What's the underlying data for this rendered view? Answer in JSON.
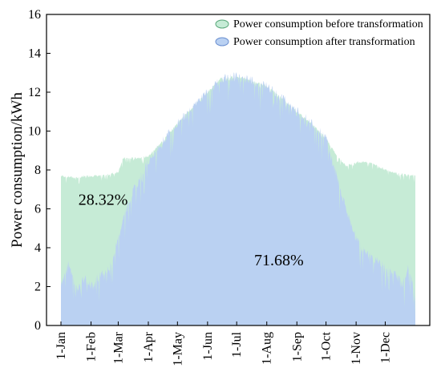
{
  "chart_data": {
    "type": "area",
    "title": "",
    "xlabel": "",
    "ylabel": "Power consumption/kWh",
    "ylim": [
      0,
      16
    ],
    "yticks": [
      0,
      2,
      4,
      6,
      8,
      10,
      12,
      14,
      16
    ],
    "xlim": [
      0,
      365
    ],
    "xticks": [
      {
        "label": "1-Jan",
        "day": 0
      },
      {
        "label": "1-Feb",
        "day": 31
      },
      {
        "label": "1-Mar",
        "day": 59
      },
      {
        "label": "1-Apr",
        "day": 90
      },
      {
        "label": "1-May",
        "day": 120
      },
      {
        "label": "1-Jun",
        "day": 151
      },
      {
        "label": "1-Jul",
        "day": 181
      },
      {
        "label": "1-Aug",
        "day": 212
      },
      {
        "label": "1-Sep",
        "day": 243
      },
      {
        "label": "1-Oct",
        "day": 273
      },
      {
        "label": "1-Nov",
        "day": 304
      },
      {
        "label": "1-Dec",
        "day": 334
      }
    ],
    "grid": false,
    "legend_position": "top-right",
    "series": [
      {
        "name": "Power consumption before transformation",
        "color": "#c6ebd6",
        "edge_color": "#5aa87a",
        "x": [
          0,
          15,
          31,
          45,
          59,
          64,
          75,
          90,
          105,
          120,
          135,
          151,
          165,
          181,
          196,
          212,
          228,
          243,
          258,
          273,
          285,
          294,
          304,
          319,
          334,
          350,
          365
        ],
        "values": [
          7.7,
          7.6,
          7.7,
          7.7,
          7.9,
          8.6,
          8.6,
          8.7,
          9.5,
          10.4,
          11.2,
          12.0,
          12.7,
          12.8,
          12.6,
          12.3,
          11.7,
          11.0,
          10.4,
          9.6,
          8.7,
          8.2,
          8.4,
          8.4,
          8.0,
          7.8,
          7.7
        ]
      },
      {
        "name": "Power consumption after transformation",
        "color": "#bad1f2",
        "edge_color": "#6a8fd0",
        "x": [
          0,
          8,
          16,
          24,
          31,
          40,
          50,
          59,
          64,
          75,
          90,
          105,
          120,
          135,
          151,
          165,
          181,
          196,
          212,
          228,
          243,
          258,
          273,
          285,
          294,
          304,
          312,
          320,
          334,
          345,
          352,
          358,
          365
        ],
        "values": [
          2.0,
          3.2,
          1.8,
          2.5,
          2.0,
          2.6,
          3.0,
          4.5,
          5.5,
          7.0,
          8.4,
          9.5,
          10.4,
          11.2,
          12.0,
          12.7,
          12.8,
          12.6,
          12.3,
          11.7,
          11.0,
          10.4,
          9.6,
          7.5,
          6.0,
          4.5,
          3.8,
          3.5,
          3.0,
          2.6,
          2.1,
          3.0,
          1.6
        ]
      }
    ],
    "annotations": [
      {
        "text": "28.32%",
        "x": 18,
        "y": 6.2
      },
      {
        "text": "71.68%",
        "x": 199,
        "y": 3.1
      }
    ]
  }
}
